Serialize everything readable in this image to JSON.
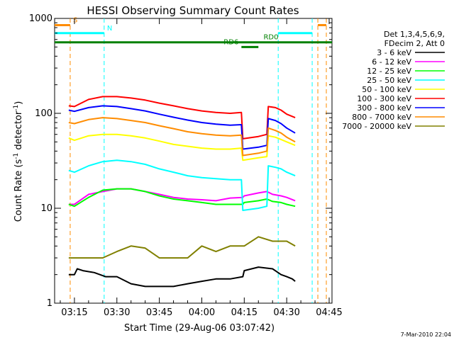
{
  "chart_data": {
    "type": "line",
    "title": "HESSI Observing Summary Count Rates",
    "xlabel": "Start Time (29-Aug-06 03:07:42)",
    "ylabel_main": "Count Rate (s",
    "ylabel_sup1": "-1",
    "ylabel_mid": " detector",
    "ylabel_sup2": "-1",
    "ylabel_end": ")",
    "yscale": "log",
    "xlim": [
      8.0,
      106.0
    ],
    "ylim": [
      1,
      1000
    ],
    "xticks": [
      {
        "value": 15,
        "label": "03:15"
      },
      {
        "value": 30,
        "label": "03:30"
      },
      {
        "value": 45,
        "label": "03:45"
      },
      {
        "value": 60,
        "label": "04:00"
      },
      {
        "value": 75,
        "label": "04:15"
      },
      {
        "value": 90,
        "label": "04:30"
      },
      {
        "value": 105,
        "label": "04:45"
      }
    ],
    "yticks": [
      {
        "value": 1,
        "label": "1"
      },
      {
        "value": 10,
        "label": "10"
      },
      {
        "value": 100,
        "label": "100"
      },
      {
        "value": 1000,
        "label": "1000"
      }
    ],
    "legend_header": [
      "Det 1,3,4,5,6,9,",
      "FDecim 2, Att 0"
    ],
    "legend_position": "right",
    "series": [
      {
        "name": "3 - 6 keV",
        "color": "#000000",
        "points": [
          [
            13,
            2
          ],
          [
            15,
            2
          ],
          [
            16,
            2.3
          ],
          [
            18,
            2.2
          ],
          [
            22,
            2.1
          ],
          [
            26,
            1.9
          ],
          [
            30,
            1.9
          ],
          [
            35,
            1.6
          ],
          [
            40,
            1.5
          ],
          [
            45,
            1.5
          ],
          [
            50,
            1.5
          ],
          [
            55,
            1.6
          ],
          [
            60,
            1.7
          ],
          [
            65,
            1.8
          ],
          [
            70,
            1.8
          ],
          [
            74.5,
            1.9
          ],
          [
            75,
            2.2
          ],
          [
            80,
            2.4
          ],
          [
            85,
            2.3
          ],
          [
            88,
            2.0
          ],
          [
            90,
            1.9
          ],
          [
            92,
            1.8
          ],
          [
            93,
            1.7
          ]
        ]
      },
      {
        "name": "6 - 12 keV",
        "color": "#ff00ff",
        "points": [
          [
            13,
            11
          ],
          [
            15,
            11
          ],
          [
            20,
            14
          ],
          [
            25,
            15
          ],
          [
            30,
            16
          ],
          [
            35,
            16
          ],
          [
            40,
            15
          ],
          [
            45,
            14
          ],
          [
            50,
            13
          ],
          [
            55,
            12.5
          ],
          [
            60,
            12.3
          ],
          [
            65,
            12
          ],
          [
            70,
            12.8
          ],
          [
            74.5,
            13
          ],
          [
            75,
            13.5
          ],
          [
            80,
            14.5
          ],
          [
            83,
            15
          ],
          [
            85,
            14
          ],
          [
            88,
            13.5
          ],
          [
            90,
            13
          ],
          [
            93,
            12
          ]
        ]
      },
      {
        "name": "12 - 25 keV",
        "color": "#00ff00",
        "points": [
          [
            13,
            11
          ],
          [
            15,
            10.5
          ],
          [
            20,
            13
          ],
          [
            25,
            15.5
          ],
          [
            30,
            16
          ],
          [
            35,
            16
          ],
          [
            40,
            15
          ],
          [
            45,
            13.5
          ],
          [
            50,
            12.5
          ],
          [
            55,
            12
          ],
          [
            60,
            11.5
          ],
          [
            65,
            11
          ],
          [
            70,
            11
          ],
          [
            74.5,
            11
          ],
          [
            75,
            11.5
          ],
          [
            80,
            12
          ],
          [
            83,
            12.5
          ],
          [
            85,
            11.8
          ],
          [
            88,
            11.5
          ],
          [
            90,
            11
          ],
          [
            93,
            10.5
          ]
        ]
      },
      {
        "name": "25 - 50 keV",
        "color": "#00ffff",
        "points": [
          [
            13,
            25
          ],
          [
            15,
            24
          ],
          [
            20,
            28
          ],
          [
            25,
            31
          ],
          [
            30,
            32
          ],
          [
            35,
            31
          ],
          [
            40,
            29
          ],
          [
            45,
            26
          ],
          [
            50,
            24
          ],
          [
            55,
            22
          ],
          [
            60,
            21
          ],
          [
            65,
            20.5
          ],
          [
            70,
            20
          ],
          [
            74,
            20
          ],
          [
            74.5,
            9.5
          ],
          [
            80,
            10
          ],
          [
            83,
            10.5
          ],
          [
            83.5,
            28
          ],
          [
            86,
            27
          ],
          [
            88,
            26
          ],
          [
            90,
            24
          ],
          [
            93,
            22
          ]
        ]
      },
      {
        "name": "50 - 100 keV",
        "color": "#ffff00",
        "points": [
          [
            13,
            55
          ],
          [
            15,
            52
          ],
          [
            20,
            58
          ],
          [
            25,
            60
          ],
          [
            30,
            60
          ],
          [
            35,
            58
          ],
          [
            40,
            55
          ],
          [
            45,
            51
          ],
          [
            50,
            47
          ],
          [
            55,
            45
          ],
          [
            60,
            43
          ],
          [
            65,
            42
          ],
          [
            70,
            42
          ],
          [
            74,
            43
          ],
          [
            74.5,
            32
          ],
          [
            80,
            34
          ],
          [
            83,
            35
          ],
          [
            83.5,
            58
          ],
          [
            86,
            56
          ],
          [
            88,
            53
          ],
          [
            90,
            50
          ],
          [
            93,
            46
          ]
        ]
      },
      {
        "name": "100 - 300 keV",
        "color": "#ff0000",
        "points": [
          [
            13,
            120
          ],
          [
            15,
            118
          ],
          [
            20,
            140
          ],
          [
            25,
            150
          ],
          [
            30,
            150
          ],
          [
            35,
            145
          ],
          [
            40,
            138
          ],
          [
            45,
            128
          ],
          [
            50,
            120
          ],
          [
            55,
            112
          ],
          [
            60,
            106
          ],
          [
            65,
            102
          ],
          [
            70,
            100
          ],
          [
            74,
            102
          ],
          [
            74.5,
            54
          ],
          [
            80,
            57
          ],
          [
            83,
            60
          ],
          [
            83.5,
            118
          ],
          [
            86,
            115
          ],
          [
            88,
            108
          ],
          [
            90,
            98
          ],
          [
            93,
            90
          ]
        ]
      },
      {
        "name": "300 - 800 keV",
        "color": "#0000ff",
        "points": [
          [
            13,
            108
          ],
          [
            15,
            105
          ],
          [
            20,
            115
          ],
          [
            25,
            120
          ],
          [
            30,
            118
          ],
          [
            35,
            112
          ],
          [
            40,
            106
          ],
          [
            45,
            98
          ],
          [
            50,
            91
          ],
          [
            55,
            85
          ],
          [
            60,
            80
          ],
          [
            65,
            77
          ],
          [
            70,
            75
          ],
          [
            74,
            76
          ],
          [
            74.5,
            42
          ],
          [
            80,
            44
          ],
          [
            83,
            46
          ],
          [
            83.5,
            88
          ],
          [
            86,
            84
          ],
          [
            88,
            78
          ],
          [
            90,
            70
          ],
          [
            93,
            62
          ]
        ]
      },
      {
        "name": "800 - 7000 keV",
        "color": "#ff8c00",
        "points": [
          [
            13,
            80
          ],
          [
            15,
            78
          ],
          [
            20,
            86
          ],
          [
            25,
            90
          ],
          [
            30,
            88
          ],
          [
            35,
            84
          ],
          [
            40,
            80
          ],
          [
            45,
            74
          ],
          [
            50,
            69
          ],
          [
            55,
            64
          ],
          [
            60,
            61
          ],
          [
            65,
            59
          ],
          [
            70,
            58
          ],
          [
            74,
            59
          ],
          [
            74.5,
            36
          ],
          [
            80,
            38
          ],
          [
            83,
            40
          ],
          [
            83.5,
            70
          ],
          [
            86,
            66
          ],
          [
            88,
            62
          ],
          [
            90,
            56
          ],
          [
            93,
            50
          ]
        ]
      },
      {
        "name": "7000 - 20000 keV",
        "color": "#808000",
        "points": [
          [
            13,
            3
          ],
          [
            15,
            3
          ],
          [
            20,
            3
          ],
          [
            25,
            3
          ],
          [
            30,
            3.5
          ],
          [
            35,
            4
          ],
          [
            40,
            3.8
          ],
          [
            45,
            3
          ],
          [
            50,
            3
          ],
          [
            55,
            3
          ],
          [
            60,
            4
          ],
          [
            65,
            3.5
          ],
          [
            70,
            4
          ],
          [
            75,
            4
          ],
          [
            80,
            5
          ],
          [
            85,
            4.5
          ],
          [
            90,
            4.5
          ],
          [
            93,
            4
          ]
        ]
      }
    ],
    "flags": [
      {
        "label": "S",
        "color": "#ff8c00",
        "y": 850,
        "segments": [
          [
            8,
            13.5
          ],
          [
            101,
            104
          ]
        ]
      },
      {
        "label": "N",
        "color": "#00ffff",
        "y": 700,
        "segments": [
          [
            8,
            25.5
          ],
          [
            87,
            99
          ]
        ]
      },
      {
        "label": "RD0",
        "color": "#008000",
        "y": 560,
        "segments": [
          [
            8,
            106
          ]
        ]
      },
      {
        "label": "RD6",
        "color": "#008000",
        "y": 500,
        "segments": [
          [
            74,
            80
          ]
        ]
      }
    ],
    "event_markers": [
      {
        "x": 13.5,
        "color": "#ff8c00"
      },
      {
        "x": 25.5,
        "color": "#00ffff"
      },
      {
        "x": 87,
        "color": "#00ffff"
      },
      {
        "x": 99,
        "color": "#00ffff"
      },
      {
        "x": 101,
        "color": "#ff8c00"
      },
      {
        "x": 104,
        "color": "#ff8c00"
      }
    ],
    "footer": "7-Mar-2010 22:04"
  }
}
